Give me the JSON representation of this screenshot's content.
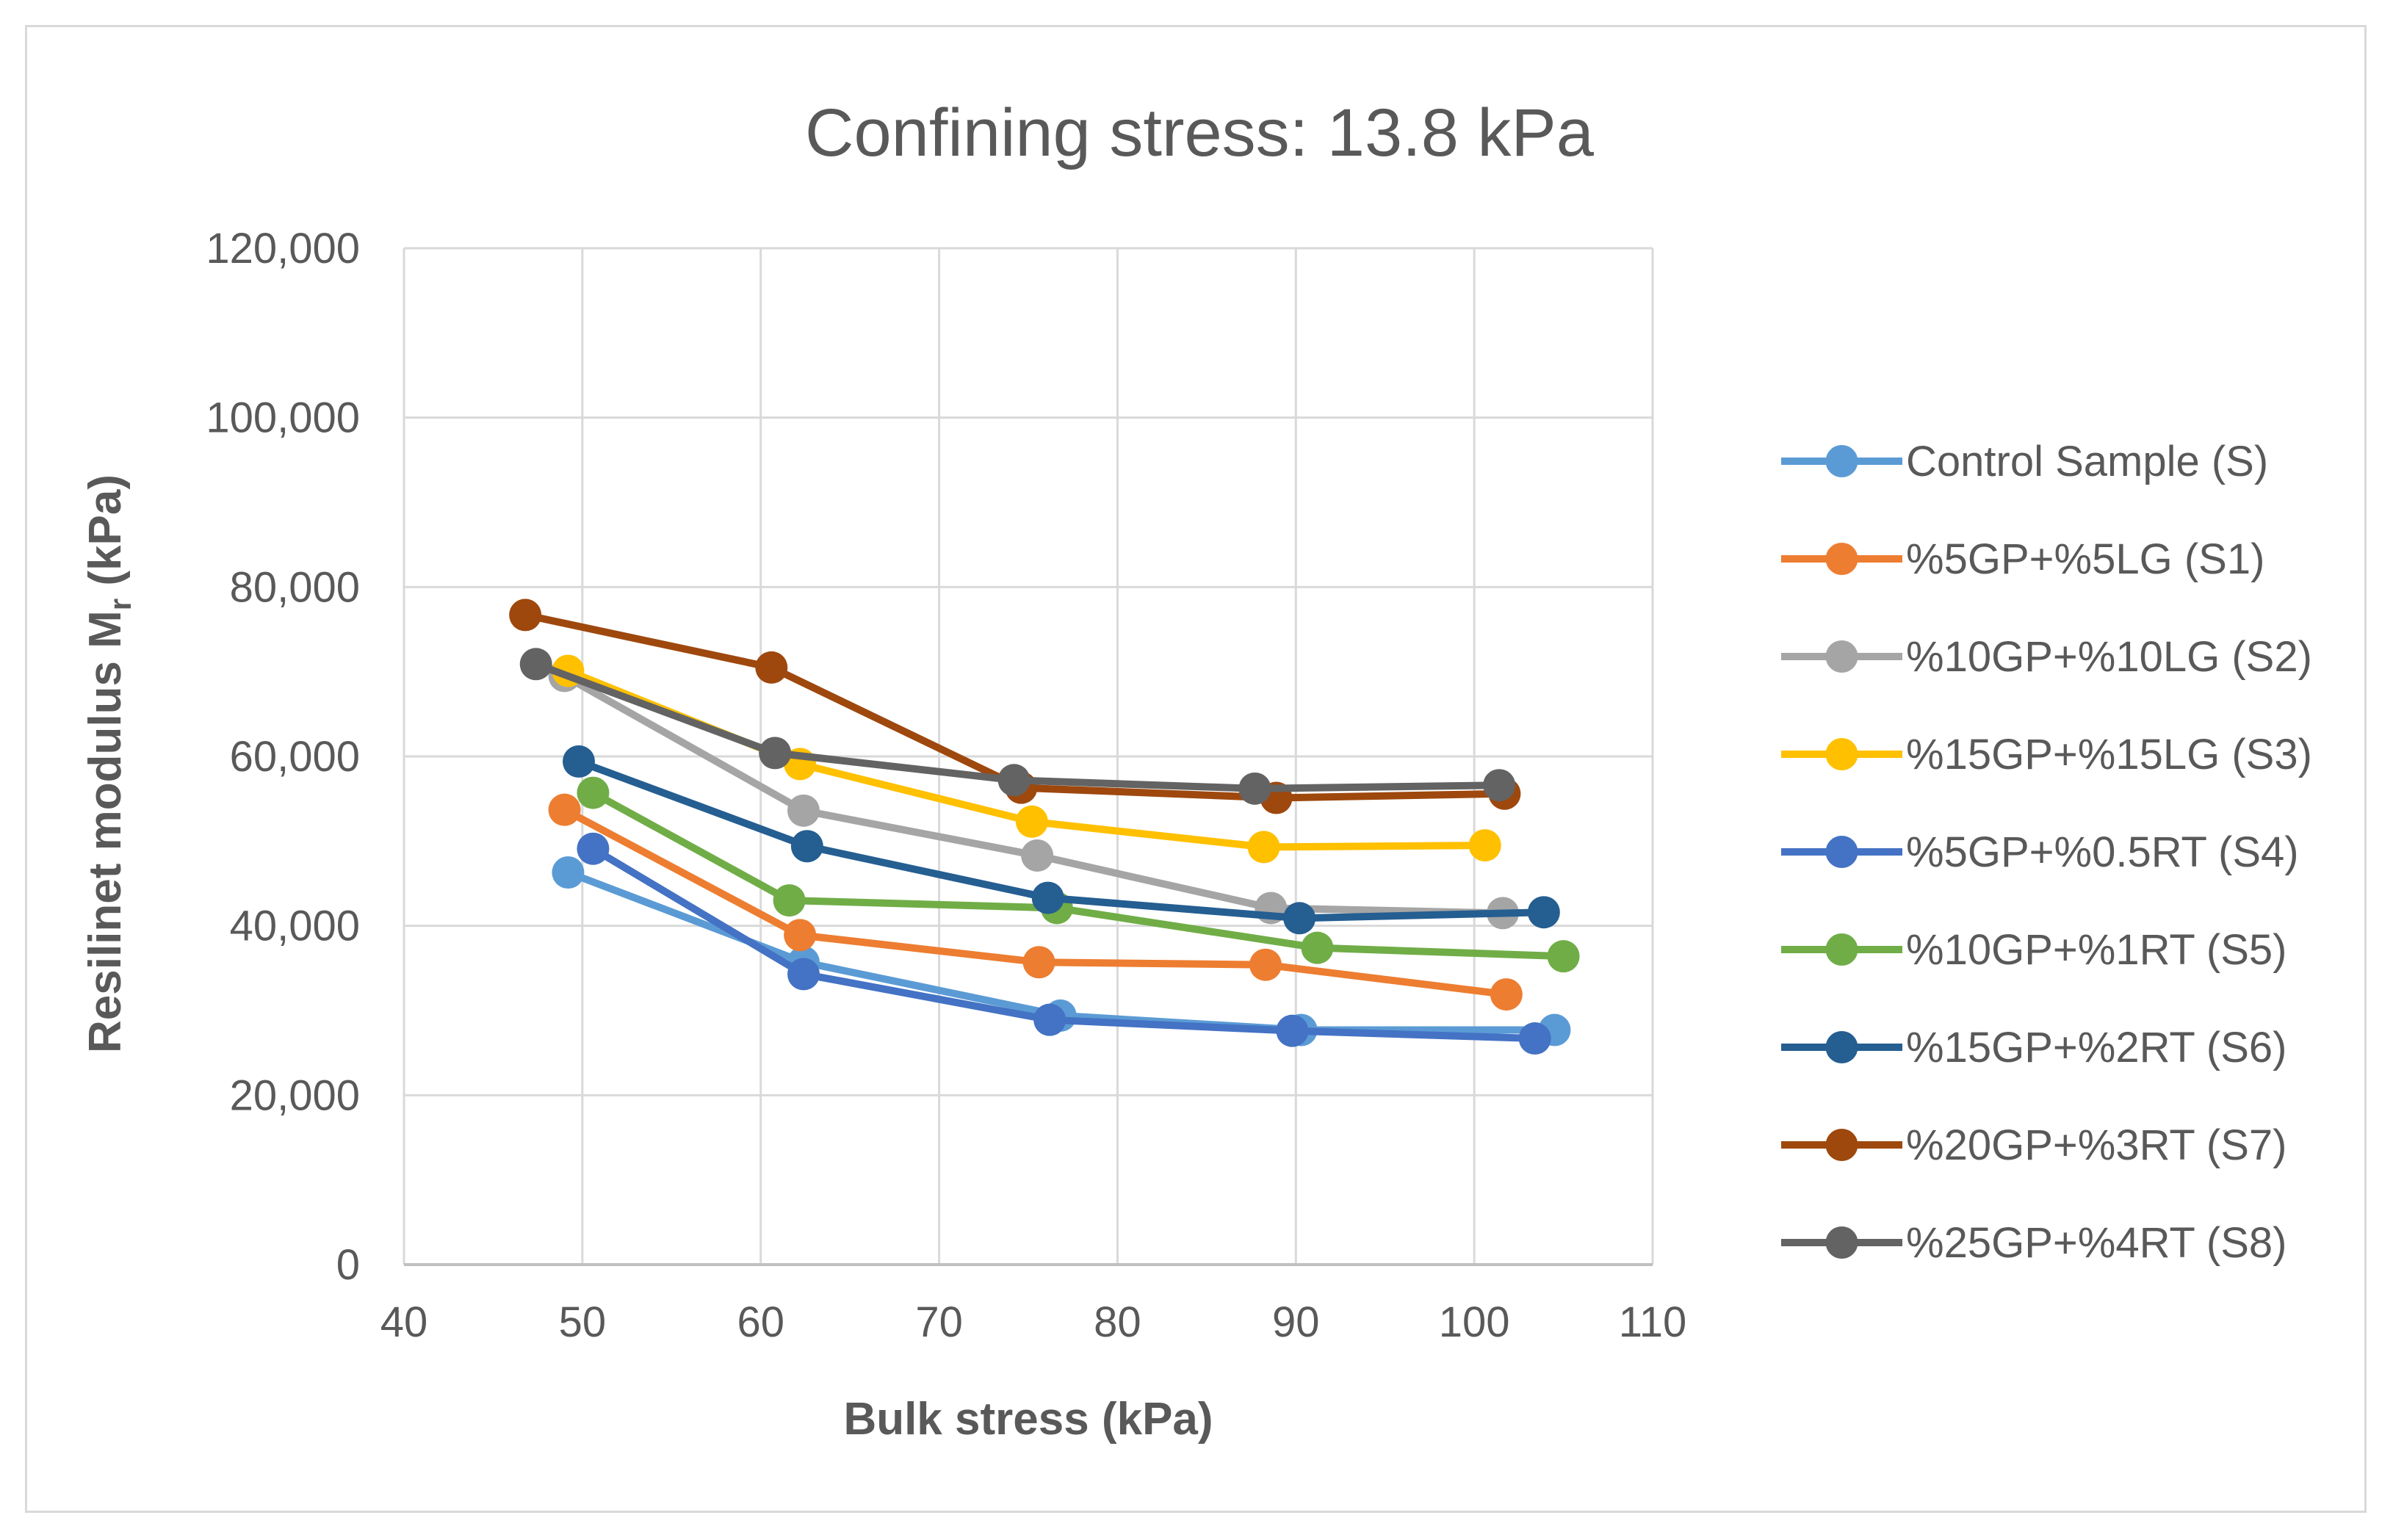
{
  "chart_data": {
    "type": "line",
    "title": "Confining stress: 13.8 kPa",
    "xlabel": "Bulk stress (kPa)",
    "ylabel_main": "Resilinet modulus M",
    "ylabel_sub": "r",
    "ylabel_tail": " (kPa)",
    "xlim": [
      40,
      110
    ],
    "ylim": [
      0,
      120000
    ],
    "xticks": [
      40,
      50,
      60,
      70,
      80,
      90,
      100,
      110
    ],
    "xtick_labels": [
      "40",
      "50",
      "60",
      "70",
      "80",
      "90",
      "100",
      "110"
    ],
    "yticks": [
      0,
      20000,
      40000,
      60000,
      80000,
      100000,
      120000
    ],
    "ytick_labels": [
      "0",
      "20,000",
      "40,000",
      "60,000",
      "80,000",
      "100,000",
      "120,000"
    ],
    "grid": true,
    "legend_position": "right",
    "series": [
      {
        "name": "Control Sample (S)",
        "color": "#5b9bd5",
        "points": [
          [
            49.2,
            46300
          ],
          [
            62.4,
            35700
          ],
          [
            76.8,
            29400
          ],
          [
            90.3,
            27700
          ],
          [
            104.5,
            27700
          ]
        ]
      },
      {
        "name": "%5GP+%5LG (S1)",
        "color": "#ed7d31",
        "points": [
          [
            49.0,
            53700
          ],
          [
            62.2,
            38900
          ],
          [
            75.6,
            35700
          ],
          [
            88.3,
            35400
          ],
          [
            101.8,
            31900
          ]
        ]
      },
      {
        "name": "%10GP+%10LG (S2)",
        "color": "#a5a5a5",
        "points": [
          [
            49.0,
            69500
          ],
          [
            62.4,
            53600
          ],
          [
            75.5,
            48300
          ],
          [
            88.6,
            42100
          ],
          [
            101.6,
            41500
          ]
        ]
      },
      {
        "name": "%15GP+%15LG (S3)",
        "color": "#ffc000",
        "points": [
          [
            49.2,
            70100
          ],
          [
            62.2,
            59100
          ],
          [
            75.2,
            52300
          ],
          [
            88.2,
            49300
          ],
          [
            100.6,
            49500
          ]
        ]
      },
      {
        "name": "%5GP+%0.5RT (S4)",
        "color": "#4472c4",
        "points": [
          [
            50.6,
            49100
          ],
          [
            62.4,
            34300
          ],
          [
            76.2,
            28900
          ],
          [
            89.8,
            27600
          ],
          [
            103.4,
            26700
          ]
        ]
      },
      {
        "name": "%10GP+%1RT (S5)",
        "color": "#70ad47",
        "points": [
          [
            50.6,
            55700
          ],
          [
            61.6,
            43000
          ],
          [
            76.6,
            42100
          ],
          [
            91.2,
            37400
          ],
          [
            105.0,
            36400
          ]
        ]
      },
      {
        "name": "%15GP+%2RT (S6)",
        "color": "#255e91",
        "points": [
          [
            49.8,
            59400
          ],
          [
            62.6,
            49400
          ],
          [
            76.1,
            43300
          ],
          [
            90.2,
            40900
          ],
          [
            103.9,
            41600
          ]
        ]
      },
      {
        "name": "%20GP+%3RT (S7)",
        "color": "#9e480e",
        "points": [
          [
            46.8,
            76700
          ],
          [
            60.6,
            70500
          ],
          [
            74.6,
            56300
          ],
          [
            88.9,
            55100
          ],
          [
            101.7,
            55600
          ]
        ]
      },
      {
        "name": "%25GP+%4RT (S8)",
        "color": "#636363",
        "points": [
          [
            47.4,
            70900
          ],
          [
            60.8,
            60400
          ],
          [
            74.2,
            57200
          ],
          [
            87.7,
            56200
          ],
          [
            101.4,
            56600
          ]
        ]
      }
    ]
  }
}
